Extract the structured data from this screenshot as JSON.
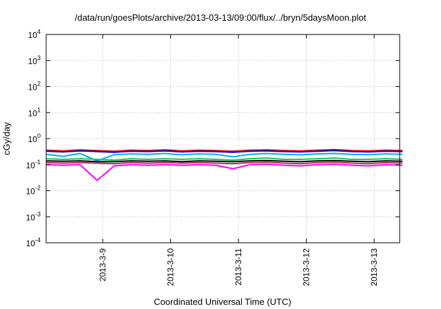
{
  "chart_data": {
    "type": "line",
    "title": "/data/run/goesPlots/archive/2013-03-13/09:00/flux/../bryn/5daysMoon.plot",
    "xlabel": "Coordinated Universal Time (UTC)",
    "ylabel": "cGy/day",
    "yscale": "log",
    "ylim": [
      0.0001,
      10000
    ],
    "xlim": [
      "2013-03-08 04:00",
      "2013-03-13 09:00"
    ],
    "x_ticks": [
      "2013-3-9",
      "2013-3-10",
      "2013-3-11",
      "2013-3-12",
      "2013-3-13"
    ],
    "y_tick_exponents": [
      "-4",
      "-3",
      "-2",
      "-1",
      "0",
      "1",
      "2",
      "3",
      "4"
    ],
    "y_tick_base": "10",
    "grid": true,
    "legend": "none",
    "sample_interval_hours": 6,
    "series": [
      {
        "color": "#ff0000",
        "values": [
          0.36,
          0.34,
          0.37,
          0.35,
          0.33,
          0.36,
          0.35,
          0.37,
          0.34,
          0.36,
          0.35,
          0.33,
          0.36,
          0.37,
          0.35,
          0.34,
          0.36,
          0.38,
          0.35,
          0.34,
          0.36,
          0.35
        ]
      },
      {
        "color": "#0000cc",
        "values": [
          0.33,
          0.31,
          0.34,
          0.32,
          0.3,
          0.33,
          0.32,
          0.34,
          0.31,
          0.33,
          0.32,
          0.3,
          0.33,
          0.34,
          0.32,
          0.31,
          0.33,
          0.35,
          0.32,
          0.31,
          0.33,
          0.32
        ]
      },
      {
        "color": "#00aaff",
        "values": [
          0.25,
          0.21,
          0.27,
          0.14,
          0.24,
          0.26,
          0.25,
          0.27,
          0.24,
          0.26,
          0.25,
          0.2,
          0.25,
          0.27,
          0.25,
          0.24,
          0.26,
          0.27,
          0.25,
          0.24,
          0.26,
          0.25
        ]
      },
      {
        "color": "#00cc66",
        "values": [
          0.17,
          0.16,
          0.17,
          0.16,
          0.15,
          0.17,
          0.16,
          0.17,
          0.16,
          0.17,
          0.16,
          0.15,
          0.17,
          0.18,
          0.16,
          0.16,
          0.17,
          0.18,
          0.16,
          0.16,
          0.17,
          0.16
        ]
      },
      {
        "color": "#000000",
        "values": [
          0.14,
          0.135,
          0.14,
          0.13,
          0.13,
          0.14,
          0.135,
          0.14,
          0.13,
          0.14,
          0.135,
          0.13,
          0.14,
          0.145,
          0.135,
          0.13,
          0.14,
          0.145,
          0.135,
          0.13,
          0.14,
          0.135
        ]
      },
      {
        "color": "#aa3355",
        "values": [
          0.12,
          0.115,
          0.12,
          0.115,
          0.11,
          0.12,
          0.115,
          0.12,
          0.115,
          0.12,
          0.115,
          0.11,
          0.12,
          0.125,
          0.115,
          0.11,
          0.12,
          0.125,
          0.115,
          0.11,
          0.12,
          0.115
        ]
      },
      {
        "color": "#ff00ff",
        "values": [
          0.1,
          0.095,
          0.1,
          0.025,
          0.09,
          0.1,
          0.095,
          0.1,
          0.095,
          0.1,
          0.095,
          0.07,
          0.1,
          0.105,
          0.095,
          0.09,
          0.1,
          0.105,
          0.095,
          0.09,
          0.1,
          0.095
        ]
      }
    ]
  }
}
